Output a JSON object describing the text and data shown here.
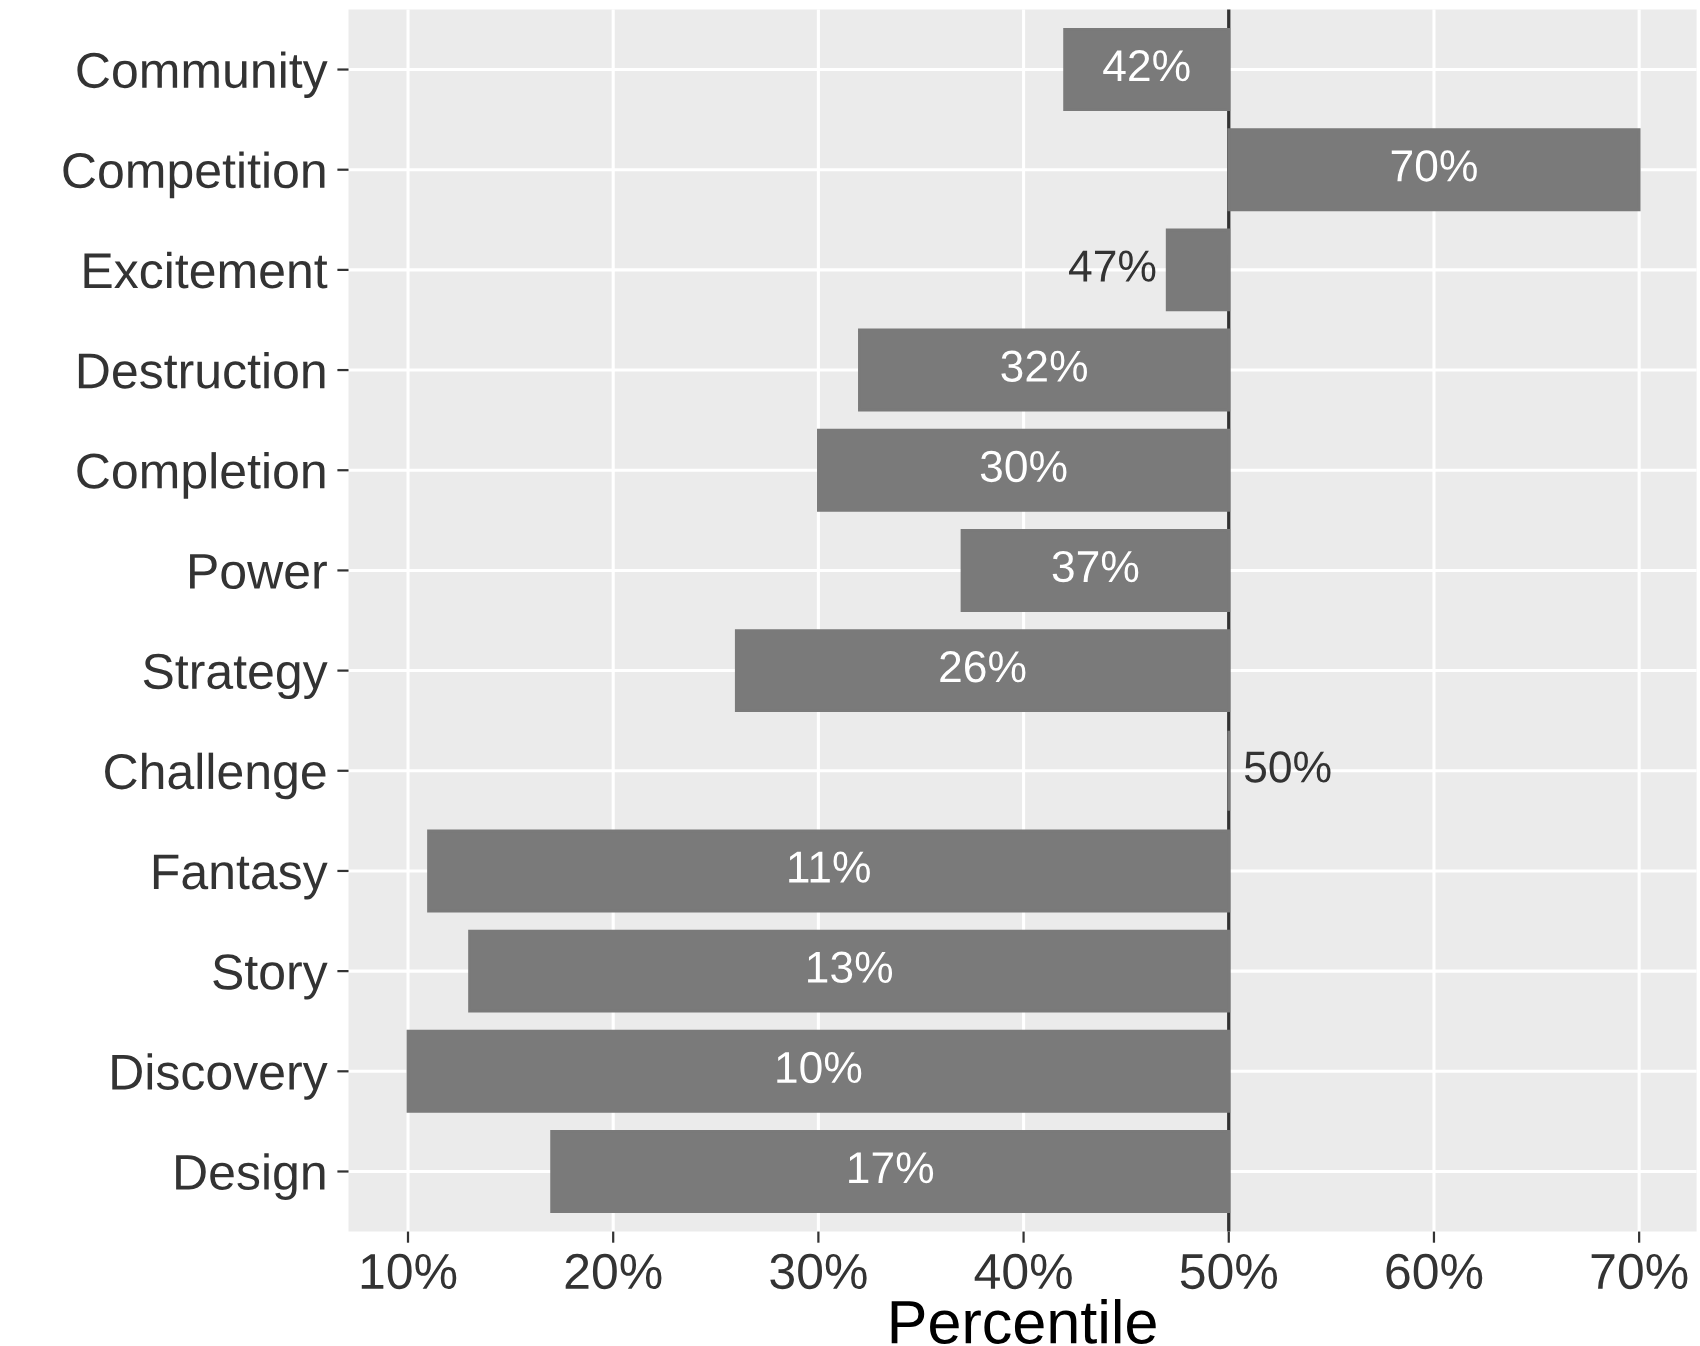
{
  "chart_data": {
    "type": "bar",
    "orientation": "horizontal",
    "xlabel": "Percentile",
    "categories": [
      "Community",
      "Competition",
      "Excitement",
      "Destruction",
      "Completion",
      "Power",
      "Strategy",
      "Challenge",
      "Fantasy",
      "Story",
      "Discovery",
      "Design"
    ],
    "base": [
      50,
      50,
      50,
      50,
      50,
      50,
      50,
      50,
      50,
      50,
      50,
      50
    ],
    "values": [
      -8,
      20,
      -3,
      -18,
      -20,
      -13,
      -24,
      0,
      -39,
      -37,
      -40,
      -33
    ],
    "value_labels": [
      "42%",
      "70%",
      "47%",
      "32%",
      "30%",
      "37%",
      "26%",
      "50%",
      "11%",
      "13%",
      "10%",
      "17%"
    ],
    "color": "#7a7a7a",
    "xlim": [
      7.1,
      72.8
    ],
    "xticks": [
      {
        "value": 10,
        "label": "10%"
      },
      {
        "value": 20,
        "label": "20%"
      },
      {
        "value": 30,
        "label": "30%"
      },
      {
        "value": 40,
        "label": "40%"
      },
      {
        "value": 50,
        "label": "50%"
      },
      {
        "value": 60,
        "label": "60%"
      },
      {
        "value": 70,
        "label": "70%"
      }
    ],
    "ref_lines": [
      {
        "axis": "x",
        "value": 50,
        "color": "#333333"
      }
    ],
    "grid": true
  }
}
